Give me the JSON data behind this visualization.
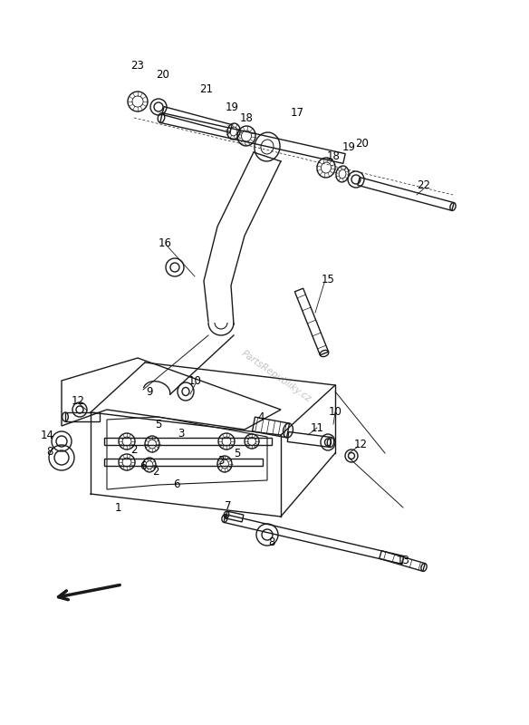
{
  "bg_color": "#ffffff",
  "line_color": "#1a1a1a",
  "label_color": "#000000",
  "watermark": "PartsRepubliky.cz",
  "figsize": [
    5.84,
    8.0
  ],
  "dpi": 100
}
